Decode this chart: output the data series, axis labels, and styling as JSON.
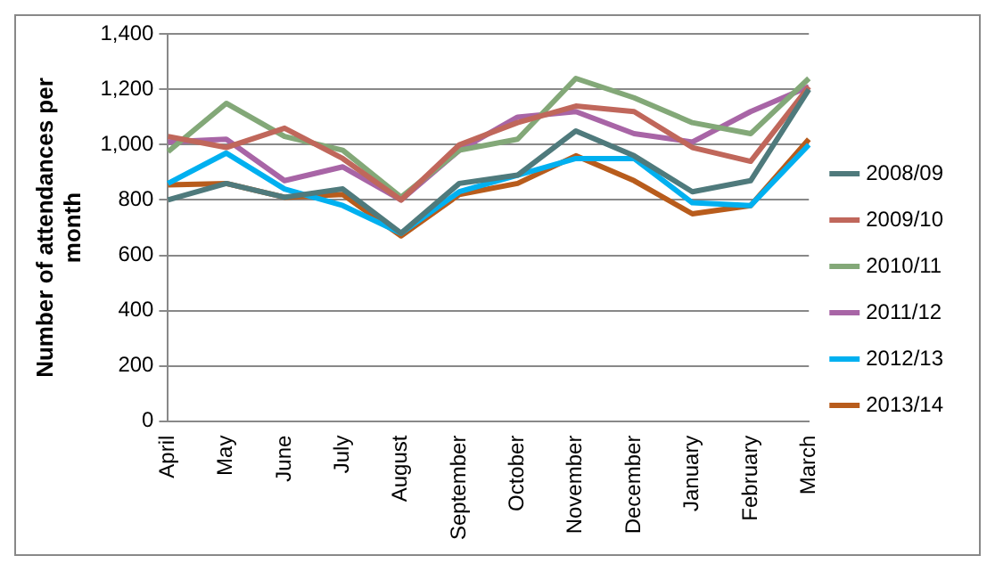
{
  "chart_data": {
    "type": "line",
    "ylabel": "Number of attendances per month",
    "categories": [
      "April",
      "May",
      "June",
      "July",
      "August",
      "September",
      "October",
      "November",
      "December",
      "January",
      "February",
      "March"
    ],
    "series": [
      {
        "name": "2008/09",
        "color": "#4f7a7c",
        "values": [
          800,
          860,
          810,
          840,
          680,
          860,
          890,
          1050,
          960,
          830,
          870,
          1200
        ]
      },
      {
        "name": "2009/10",
        "color": "#c0675b",
        "values": [
          1030,
          990,
          1060,
          950,
          800,
          1000,
          1080,
          1140,
          1120,
          990,
          940,
          1210
        ]
      },
      {
        "name": "2010/11",
        "color": "#83a878",
        "values": [
          975,
          1150,
          1030,
          980,
          810,
          980,
          1020,
          1240,
          1170,
          1080,
          1040,
          1240
        ]
      },
      {
        "name": "2011/12",
        "color": "#a865a6",
        "values": [
          1010,
          1020,
          870,
          920,
          800,
          980,
          1100,
          1120,
          1040,
          1010,
          1120,
          1210
        ]
      },
      {
        "name": "2012/13",
        "color": "#00b0f0",
        "values": [
          860,
          970,
          840,
          780,
          680,
          830,
          890,
          950,
          950,
          790,
          780,
          1000
        ]
      },
      {
        "name": "2013/14",
        "color": "#b85c1c",
        "values": [
          855,
          860,
          810,
          820,
          670,
          820,
          860,
          960,
          870,
          750,
          780,
          1020
        ]
      }
    ],
    "ylim": [
      0,
      1400
    ],
    "yticks": [
      0,
      200,
      400,
      600,
      800,
      {
        "value": 1000,
        "label": "1,000"
      },
      {
        "value": 1200,
        "label": "1,200"
      },
      {
        "value": 1400,
        "label": "1,400"
      }
    ],
    "grid": "y",
    "legend": "right",
    "marker": "none",
    "line_style": "solid"
  }
}
